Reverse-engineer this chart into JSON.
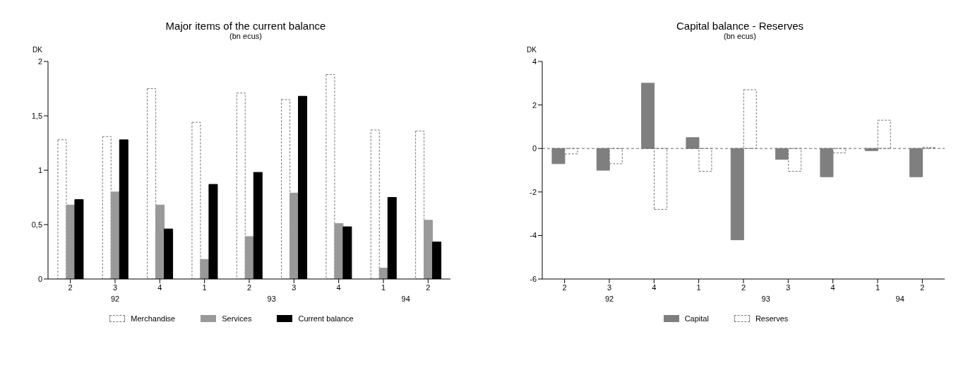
{
  "chart_data": [
    {
      "type": "bar",
      "title": "Major items of the current balance",
      "subtitle": "(bn ecus)",
      "ylabel": "DK",
      "categories": [
        "2",
        "3",
        "4",
        "1",
        "2",
        "3",
        "4",
        "1",
        "2"
      ],
      "annotations": [
        "92",
        "93",
        "94"
      ],
      "series": [
        {
          "name": "Merchandise",
          "color": "#ffffff",
          "values": [
            1.28,
            1.31,
            1.75,
            1.44,
            1.71,
            1.65,
            1.88,
            1.37,
            1.36
          ]
        },
        {
          "name": "Services",
          "color": "#999999",
          "values": [
            0.68,
            0.8,
            0.68,
            0.18,
            0.39,
            0.79,
            0.51,
            0.1,
            0.54
          ]
        },
        {
          "name": "Current balance",
          "color": "#000000",
          "values": [
            0.73,
            1.28,
            0.46,
            0.87,
            0.98,
            1.68,
            0.48,
            0.75,
            0.34
          ]
        }
      ],
      "ylim": [
        0,
        2
      ],
      "yticks": [
        0,
        {
          "value": 0.5,
          "label": "0,5"
        },
        1,
        {
          "value": 1.5,
          "label": "1,5"
        },
        2
      ],
      "grid": false,
      "legend": "bottom"
    },
    {
      "type": "bar",
      "title": "Capital balance - Reserves",
      "subtitle": "(bn ecus)",
      "ylabel": "DK",
      "categories": [
        "2",
        "3",
        "4",
        "1",
        "2",
        "3",
        "4",
        "1",
        "2"
      ],
      "annotations": [
        "92",
        "93",
        "94"
      ],
      "series": [
        {
          "name": "Capital",
          "color": "#7f7f7f",
          "values": [
            -0.7,
            -1.0,
            3.0,
            0.5,
            -4.2,
            -0.5,
            -1.3,
            -0.1,
            -1.3
          ]
        },
        {
          "name": "Reserves",
          "color": "#ffffff",
          "values": [
            -0.25,
            -0.7,
            -2.8,
            -1.05,
            2.7,
            -1.05,
            -0.2,
            1.3,
            0.05
          ]
        }
      ],
      "ylim": [
        -6,
        4
      ],
      "yticks": [
        -6,
        -4,
        -2,
        0,
        2,
        4
      ],
      "ref_lines": [
        {
          "axis": "y",
          "value": 0
        }
      ],
      "grid": false,
      "legend": "bottom"
    }
  ]
}
